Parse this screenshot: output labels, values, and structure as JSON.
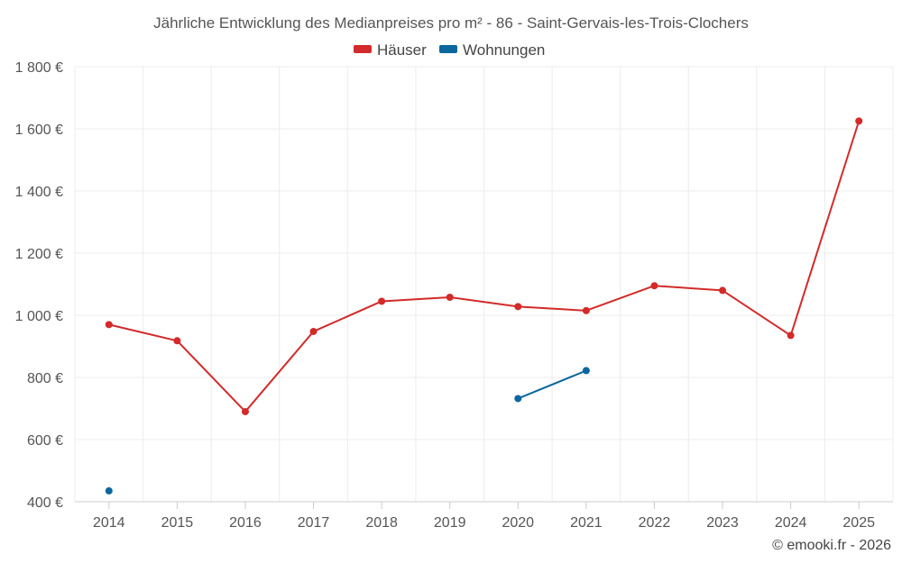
{
  "chart_data": {
    "type": "line",
    "title": "Jährliche Entwicklung des Medianpreises pro m² - 86 - Saint-Gervais-les-Trois-Clochers",
    "categories": [
      "2014",
      "2015",
      "2016",
      "2017",
      "2018",
      "2019",
      "2020",
      "2021",
      "2022",
      "2023",
      "2024",
      "2025"
    ],
    "series": [
      {
        "name": "Häuser",
        "color": "#d32a2a",
        "values": [
          970,
          918,
          690,
          948,
          1045,
          1058,
          1028,
          1015,
          1095,
          1080,
          935,
          1625
        ]
      },
      {
        "name": "Wohnungen",
        "color": "#0b669e",
        "values": [
          435,
          null,
          null,
          null,
          null,
          null,
          732,
          822,
          null,
          null,
          null,
          null
        ]
      }
    ],
    "ylim": [
      400,
      1800
    ],
    "yticks": [
      400,
      600,
      800,
      1000,
      1200,
      1400,
      1600,
      1800
    ],
    "ytick_labels": [
      "400 €",
      "600 €",
      "800 €",
      "1 000 €",
      "1 200 €",
      "1 400 €",
      "1 600 €",
      "1 800 €"
    ],
    "grid": true,
    "legend_position": "top-center",
    "xlabel": "",
    "ylabel": ""
  },
  "credit": "© emooki.fr - 2026"
}
